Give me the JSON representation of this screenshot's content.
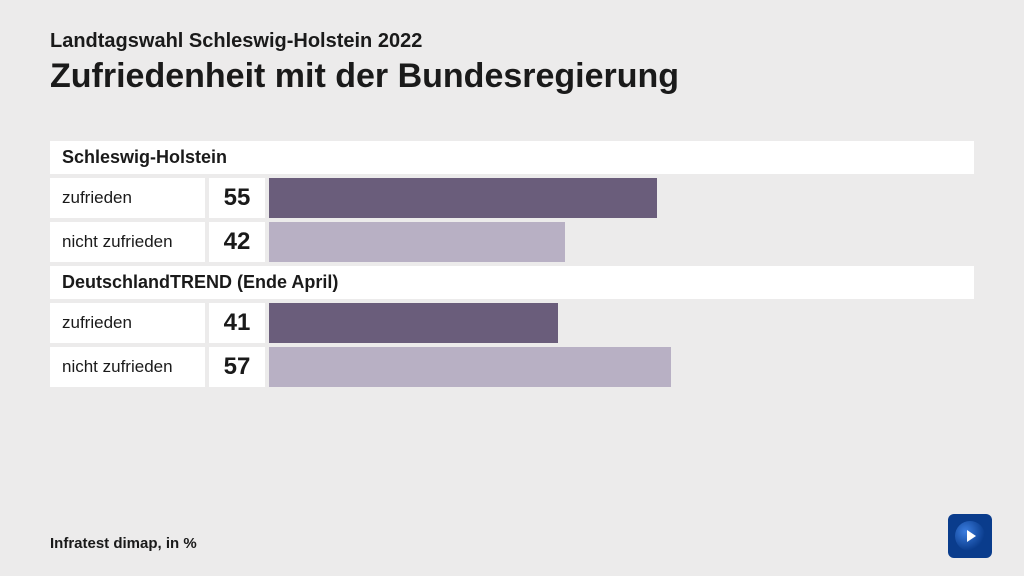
{
  "header": {
    "subtitle": "Landtagswahl Schleswig-Holstein 2022",
    "title": "Zufriedenheit mit der Bundesregierung"
  },
  "chart": {
    "type": "bar",
    "max_value": 100,
    "bar_colors": {
      "zufrieden": "#6a5d7b",
      "nicht_zufrieden": "#b8b0c4"
    },
    "background_color": "#ecebeb",
    "row_bg": "#ffffff",
    "label_fontsize": 17,
    "value_fontsize": 24,
    "sections": [
      {
        "header": "Schleswig-Holstein",
        "rows": [
          {
            "label": "zufrieden",
            "value": 55,
            "color_key": "zufrieden"
          },
          {
            "label": "nicht zufrieden",
            "value": 42,
            "color_key": "nicht_zufrieden"
          }
        ]
      },
      {
        "header": "DeutschlandTREND (Ende April)",
        "rows": [
          {
            "label": "zufrieden",
            "value": 41,
            "color_key": "zufrieden"
          },
          {
            "label": "nicht zufrieden",
            "value": 57,
            "color_key": "nicht_zufrieden"
          }
        ]
      }
    ]
  },
  "footer": {
    "source": "Infratest dimap, in %"
  }
}
